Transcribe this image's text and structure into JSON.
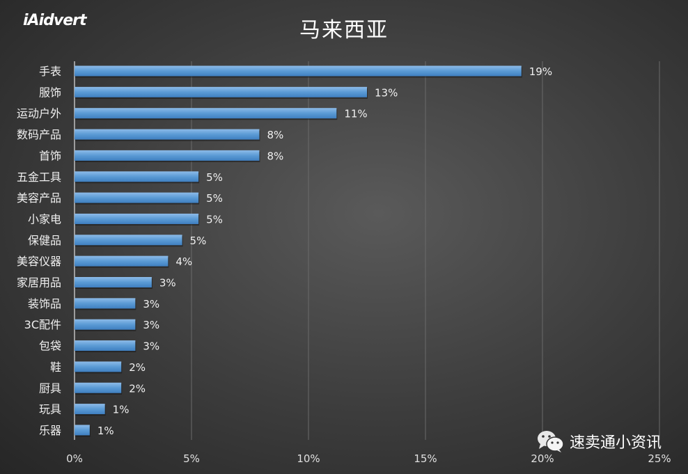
{
  "logo_text": "iAidvert",
  "watermark": {
    "icon": "wechat-icon",
    "text": "速卖通小资讯"
  },
  "chart_data": {
    "type": "bar",
    "orientation": "horizontal",
    "title": "马来西亚",
    "categories": [
      "手表",
      "服饰",
      "运动户外",
      "数码产品",
      "首饰",
      "五金工具",
      "美容产品",
      "小家电",
      "保健品",
      "美容仪器",
      "家居用品",
      "装饰品",
      "3C配件",
      "包袋",
      "鞋",
      "厨具",
      "玩具",
      "乐器"
    ],
    "values": [
      19.1,
      12.5,
      11.2,
      7.9,
      7.9,
      5.3,
      5.3,
      5.3,
      4.6,
      4.0,
      3.3,
      2.6,
      2.6,
      2.6,
      2.0,
      2.0,
      1.3,
      0.65
    ],
    "data_labels": [
      "19%",
      "13%",
      "11%",
      "8%",
      "8%",
      "5%",
      "5%",
      "5%",
      "5%",
      "4%",
      "3%",
      "3%",
      "3%",
      "3%",
      "2%",
      "2%",
      "1%",
      "1%"
    ],
    "xlim": [
      0,
      25
    ],
    "xticks": [
      0,
      5,
      10,
      15,
      20,
      25
    ],
    "xtick_labels": [
      "0%",
      "5%",
      "10%",
      "15%",
      "20%",
      "25%"
    ],
    "grid": "vertical",
    "bar_color": "#5b9bd5",
    "text_color": "#ffffff"
  }
}
